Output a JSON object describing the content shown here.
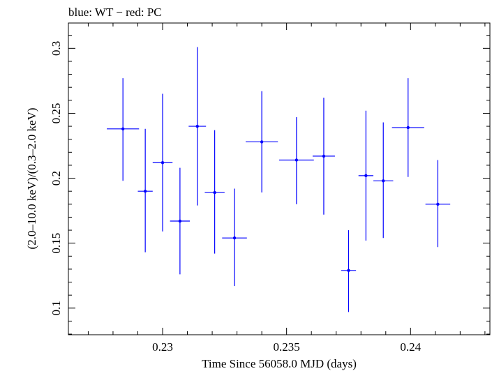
{
  "chart_data": {
    "type": "scatter",
    "title": "blue: WT − red: PC",
    "xlabel": "Time Since 56058.0 MJD (days)",
    "ylabel": "(2.0–10.0 keV)/(0.3–2.0 keV)",
    "xlim": [
      0.2262,
      0.2432
    ],
    "ylim": [
      0.0795,
      0.3195
    ],
    "xticks": [
      0.23,
      0.235,
      0.24
    ],
    "xtick_labels": [
      "0.23",
      "0.235",
      "0.24"
    ],
    "yticks": [
      0.1,
      0.15,
      0.2,
      0.25,
      0.3
    ],
    "ytick_labels": [
      "0.1",
      "0.15",
      "0.2",
      "0.25",
      "0.3"
    ],
    "grid": false,
    "series": [
      {
        "color": "#0000ff",
        "points": [
          {
            "x": 0.2284,
            "y": 0.238,
            "xerr": 0.00065,
            "ylo": 0.198,
            "yhi": 0.277
          },
          {
            "x": 0.2293,
            "y": 0.19,
            "xerr": 0.0003,
            "ylo": 0.143,
            "yhi": 0.238
          },
          {
            "x": 0.23,
            "y": 0.212,
            "xerr": 0.0004,
            "ylo": 0.159,
            "yhi": 0.265
          },
          {
            "x": 0.2307,
            "y": 0.167,
            "xerr": 0.0004,
            "ylo": 0.126,
            "yhi": 0.208
          },
          {
            "x": 0.2314,
            "y": 0.24,
            "xerr": 0.00035,
            "ylo": 0.179,
            "yhi": 0.301
          },
          {
            "x": 0.2321,
            "y": 0.189,
            "xerr": 0.0004,
            "ylo": 0.142,
            "yhi": 0.237
          },
          {
            "x": 0.2329,
            "y": 0.154,
            "xerr": 0.0005,
            "ylo": 0.117,
            "yhi": 0.192
          },
          {
            "x": 0.234,
            "y": 0.228,
            "xerr": 0.00065,
            "ylo": 0.189,
            "yhi": 0.267
          },
          {
            "x": 0.2354,
            "y": 0.214,
            "xerr": 0.0007,
            "ylo": 0.18,
            "yhi": 0.247
          },
          {
            "x": 0.2365,
            "y": 0.217,
            "xerr": 0.00045,
            "ylo": 0.172,
            "yhi": 0.262
          },
          {
            "x": 0.2375,
            "y": 0.129,
            "xerr": 0.0003,
            "ylo": 0.097,
            "yhi": 0.16
          },
          {
            "x": 0.2382,
            "y": 0.202,
            "xerr": 0.0003,
            "ylo": 0.152,
            "yhi": 0.252
          },
          {
            "x": 0.2389,
            "y": 0.198,
            "xerr": 0.0004,
            "ylo": 0.154,
            "yhi": 0.243
          },
          {
            "x": 0.2399,
            "y": 0.239,
            "xerr": 0.00065,
            "ylo": 0.201,
            "yhi": 0.277
          },
          {
            "x": 0.2411,
            "y": 0.18,
            "xerr": 0.0005,
            "ylo": 0.147,
            "yhi": 0.214
          }
        ]
      }
    ]
  }
}
